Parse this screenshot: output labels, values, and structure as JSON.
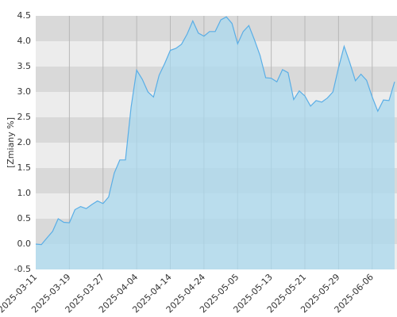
{
  "chart_data": {
    "type": "area",
    "y_label": "[Zmiany %]",
    "categories": [
      "2025-03-11",
      null,
      null,
      null,
      null,
      null,
      "2025-03-19",
      null,
      null,
      null,
      null,
      null,
      "2025-03-27",
      null,
      null,
      null,
      null,
      null,
      "2025-04-04",
      null,
      null,
      null,
      null,
      null,
      "2025-04-14",
      null,
      null,
      null,
      null,
      null,
      "2025-04-24",
      null,
      null,
      null,
      null,
      null,
      "2025-05-05",
      null,
      null,
      null,
      null,
      null,
      "2025-05-13",
      null,
      null,
      null,
      null,
      null,
      "2025-05-21",
      null,
      null,
      null,
      null,
      null,
      "2025-05-29",
      null,
      null,
      null,
      null,
      null,
      "2025-06-06",
      null,
      null,
      null,
      null
    ],
    "values": [
      0.0,
      -0.01,
      0.12,
      0.25,
      0.5,
      0.43,
      0.42,
      0.68,
      0.74,
      0.7,
      0.78,
      0.85,
      0.8,
      0.93,
      1.4,
      1.66,
      1.66,
      2.7,
      3.43,
      3.25,
      3.0,
      2.9,
      3.33,
      3.56,
      3.82,
      3.86,
      3.94,
      4.14,
      4.4,
      4.16,
      4.1,
      4.19,
      4.19,
      4.42,
      4.48,
      4.35,
      3.95,
      4.19,
      4.31,
      4.03,
      3.72,
      3.28,
      3.27,
      3.2,
      3.44,
      3.38,
      2.85,
      3.02,
      2.92,
      2.72,
      2.83,
      2.8,
      2.88,
      3.0,
      3.48,
      3.9,
      3.58,
      3.22,
      3.35,
      3.23,
      2.9,
      2.62,
      2.84,
      2.83,
      3.2
    ],
    "color": "#5aaee6",
    "fill_color": "#a9d8ee",
    "ylim": [
      -0.5,
      4.5
    ],
    "yticks": [
      -0.5,
      {
        "value": 0,
        "label": "0.0"
      },
      0.5,
      {
        "value": 1,
        "label": "1.0"
      },
      1.5,
      {
        "value": 2,
        "label": "2.0"
      },
      2.5,
      {
        "value": 3,
        "label": "3.0"
      },
      3.5,
      {
        "value": 4,
        "label": "4.0"
      },
      4.5
    ],
    "grid": true
  }
}
